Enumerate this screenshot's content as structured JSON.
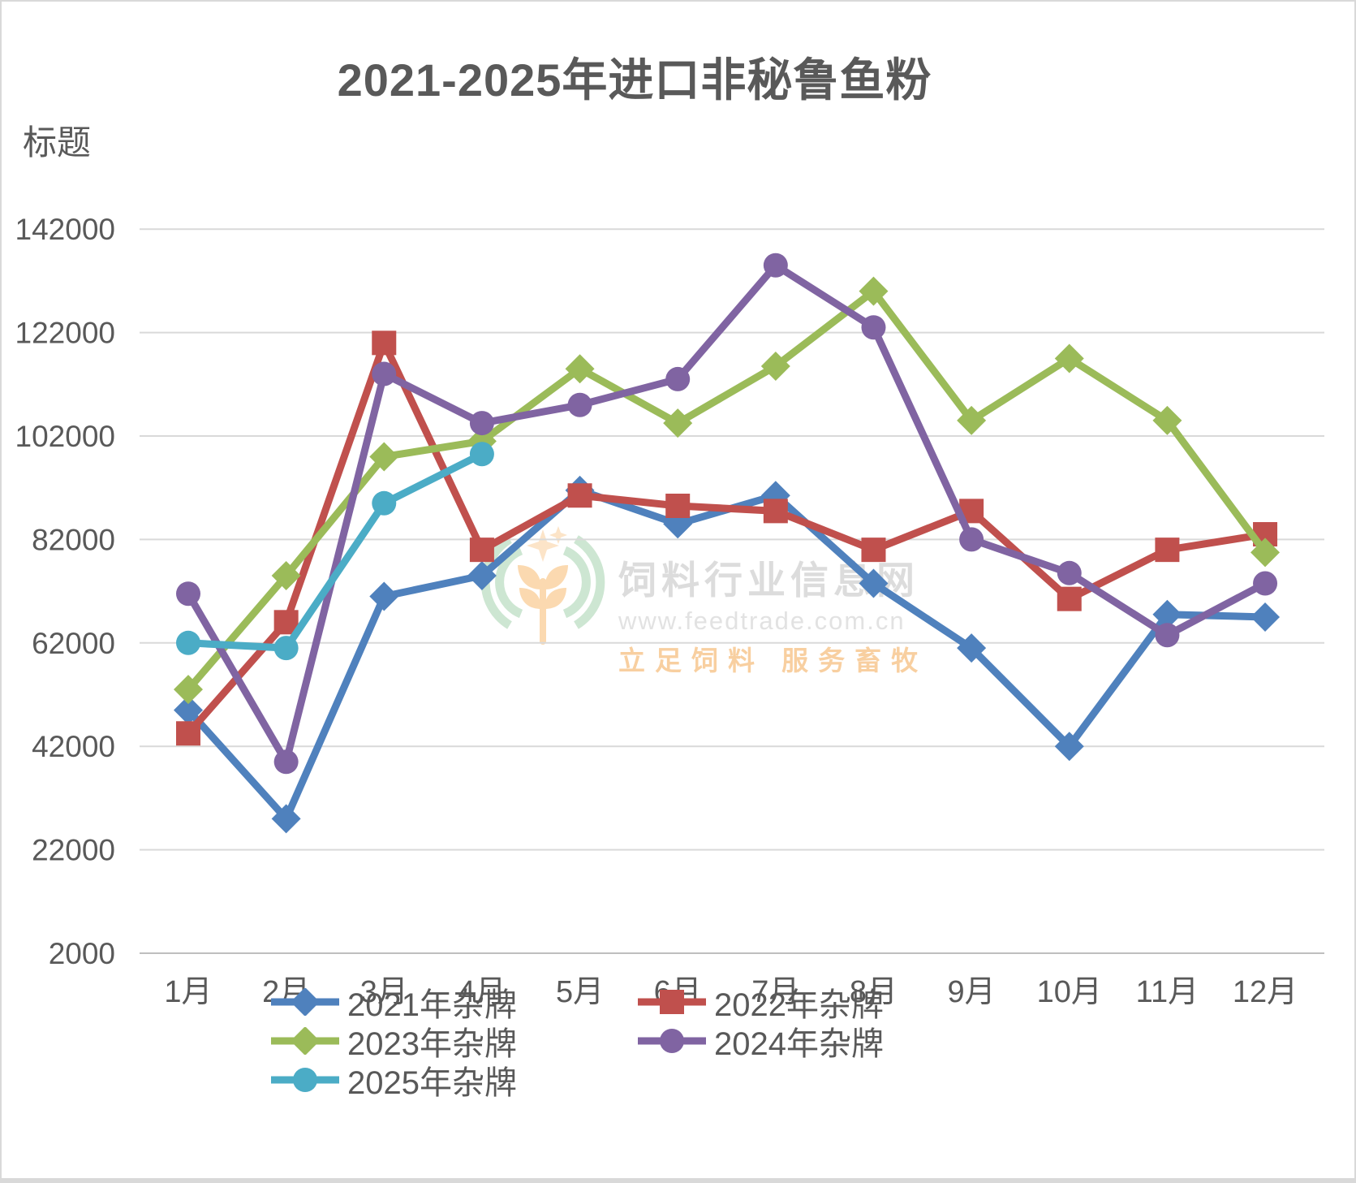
{
  "page": {
    "title": "2021-2025年进口非秘鲁鱼粉",
    "axis_title": "标题"
  },
  "watermark": {
    "line1": "饲料行业信息网",
    "line2": "www.feedtrade.com.cn",
    "line3": "立足饲料  服务畜牧"
  },
  "colors": {
    "text_gray": "#595959",
    "gridline": "#d9d9d9",
    "axis_line": "#bfbfbf"
  },
  "chart_data": {
    "type": "line",
    "title": "2021-2025年进口非秘鲁鱼粉",
    "xlabel": "",
    "ylabel": "标题",
    "ylim": [
      2000,
      142000
    ],
    "yticks": [
      2000,
      22000,
      42000,
      62000,
      82000,
      102000,
      122000,
      142000
    ],
    "grid": true,
    "legend_position": "bottom",
    "categories": [
      "1月",
      "2月",
      "3月",
      "4月",
      "5月",
      "6月",
      "7月",
      "8月",
      "9月",
      "10月",
      "11月",
      "12月"
    ],
    "series": [
      {
        "name": "2021年杂牌",
        "color": "#4F81BD",
        "marker": "diamond",
        "values": [
          49000,
          28000,
          71000,
          75000,
          91500,
          85000,
          90500,
          73500,
          61000,
          42000,
          67500,
          67000
        ]
      },
      {
        "name": "2022年杂牌",
        "color": "#C0504D",
        "marker": "square",
        "values": [
          44500,
          66000,
          120000,
          80000,
          90500,
          88500,
          87500,
          80000,
          87500,
          70500,
          80000,
          83000
        ]
      },
      {
        "name": "2023年杂牌",
        "color": "#9BBB59",
        "marker": "diamond",
        "values": [
          53000,
          75000,
          98000,
          101000,
          115000,
          104500,
          115500,
          130000,
          105000,
          117000,
          105000,
          79500
        ]
      },
      {
        "name": "2024年杂牌",
        "color": "#8064A2",
        "marker": "circle",
        "values": [
          71500,
          39000,
          114000,
          104500,
          108000,
          113000,
          135000,
          123000,
          82000,
          75500,
          63500,
          73500
        ]
      },
      {
        "name": "2025年杂牌",
        "color": "#4BACC6",
        "marker": "circle",
        "values": [
          62000,
          61000,
          89000,
          98500,
          null,
          null,
          null,
          null,
          null,
          null,
          null,
          null
        ]
      }
    ]
  }
}
